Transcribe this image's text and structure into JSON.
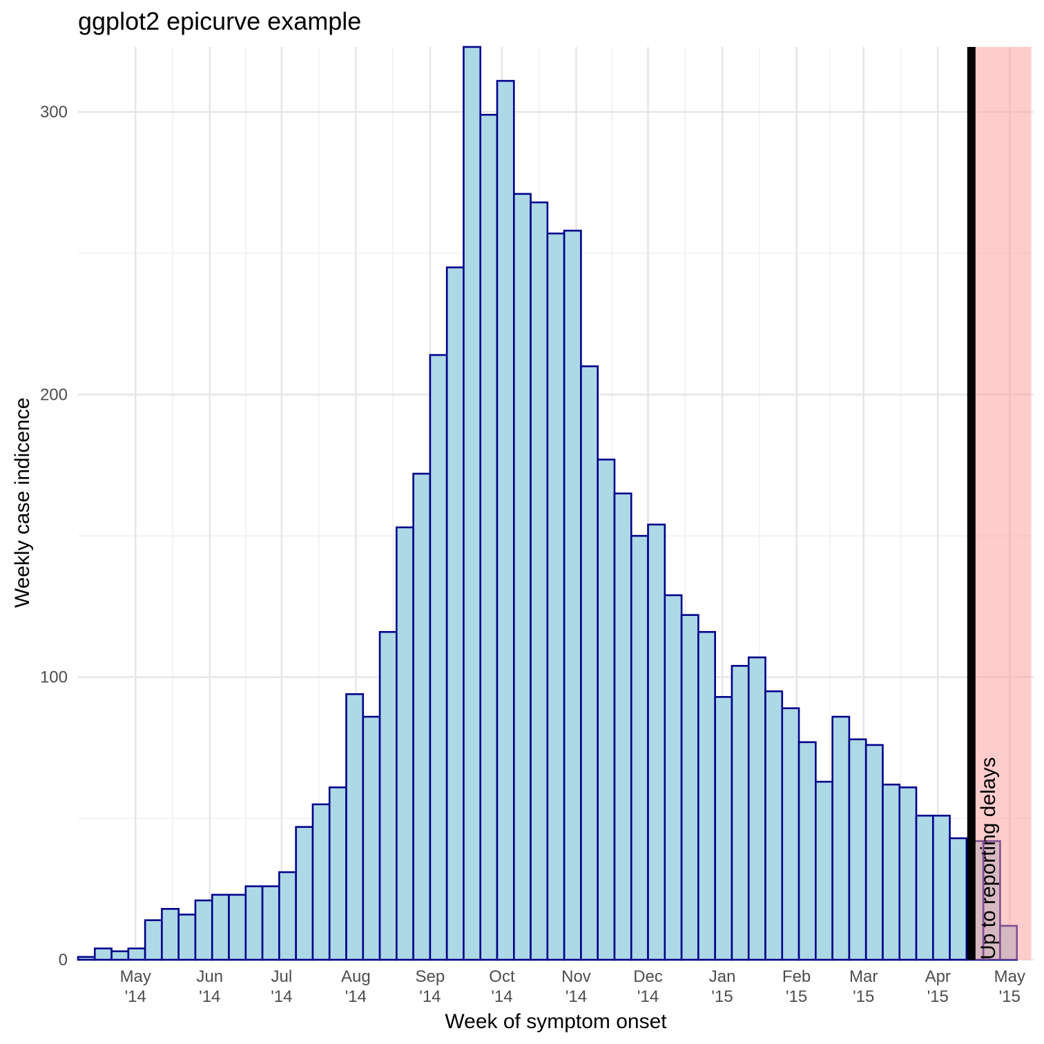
{
  "chart_data": {
    "type": "bar",
    "title": "ggplot2 epicurve example",
    "xlabel": "Week of symptom onset",
    "ylabel": "Weekly case indicence",
    "ylim": [
      0,
      323
    ],
    "y_ticks": [
      0,
      100,
      200,
      300
    ],
    "y_minor_ticks": [
      50,
      150,
      250
    ],
    "x_range": [
      "2014-04-07",
      "2015-05-11"
    ],
    "x_ticks": [
      {
        "date": "2014-05-01",
        "label_month": "May",
        "label_year": "'14"
      },
      {
        "date": "2014-06-01",
        "label_month": "Jun",
        "label_year": "'14"
      },
      {
        "date": "2014-07-01",
        "label_month": "Jul",
        "label_year": "'14"
      },
      {
        "date": "2014-08-01",
        "label_month": "Aug",
        "label_year": "'14"
      },
      {
        "date": "2014-09-01",
        "label_month": "Sep",
        "label_year": "'14"
      },
      {
        "date": "2014-10-01",
        "label_month": "Oct",
        "label_year": "'14"
      },
      {
        "date": "2014-11-01",
        "label_month": "Nov",
        "label_year": "'14"
      },
      {
        "date": "2014-12-01",
        "label_month": "Dec",
        "label_year": "'14"
      },
      {
        "date": "2015-01-01",
        "label_month": "Jan",
        "label_year": "'15"
      },
      {
        "date": "2015-02-01",
        "label_month": "Feb",
        "label_year": "'15"
      },
      {
        "date": "2015-03-01",
        "label_month": "Mar",
        "label_year": "'15"
      },
      {
        "date": "2015-04-01",
        "label_month": "Apr",
        "label_year": "'15"
      },
      {
        "date": "2015-05-01",
        "label_month": "May",
        "label_year": "'15"
      }
    ],
    "grid": true,
    "bar_fill": "#add8e6",
    "bar_outline": "#00008b",
    "weeks": [
      "2014-04-07",
      "2014-04-14",
      "2014-04-21",
      "2014-04-28",
      "2014-05-05",
      "2014-05-12",
      "2014-05-19",
      "2014-05-26",
      "2014-06-02",
      "2014-06-09",
      "2014-06-16",
      "2014-06-23",
      "2014-06-30",
      "2014-07-07",
      "2014-07-14",
      "2014-07-21",
      "2014-07-28",
      "2014-08-04",
      "2014-08-11",
      "2014-08-18",
      "2014-08-25",
      "2014-09-01",
      "2014-09-08",
      "2014-09-15",
      "2014-09-22",
      "2014-09-29",
      "2014-10-06",
      "2014-10-13",
      "2014-10-20",
      "2014-10-27",
      "2014-11-03",
      "2014-11-10",
      "2014-11-17",
      "2014-11-24",
      "2014-12-01",
      "2014-12-08",
      "2014-12-15",
      "2014-12-22",
      "2014-12-29",
      "2015-01-05",
      "2015-01-12",
      "2015-01-19",
      "2015-01-26",
      "2015-02-02",
      "2015-02-09",
      "2015-02-16",
      "2015-02-23",
      "2015-03-02",
      "2015-03-09",
      "2015-03-16",
      "2015-03-23",
      "2015-03-30",
      "2015-04-06",
      "2015-04-13",
      "2015-04-20",
      "2015-04-27"
    ],
    "values": [
      1,
      4,
      3,
      4,
      14,
      18,
      16,
      21,
      23,
      23,
      26,
      26,
      31,
      47,
      55,
      61,
      94,
      86,
      116,
      153,
      172,
      214,
      245,
      323,
      299,
      311,
      271,
      268,
      257,
      258,
      210,
      177,
      165,
      150,
      154,
      129,
      122,
      116,
      93,
      104,
      107,
      95,
      89,
      77,
      63,
      86,
      78,
      76,
      62,
      61,
      51,
      51,
      43,
      42,
      42,
      12
    ],
    "shaded_region": {
      "start": "2015-04-15",
      "end": "2015-05-10",
      "color": "#ff9999",
      "opacity": 0.5
    },
    "vline": {
      "date": "2015-04-15",
      "color": "#000000"
    },
    "annotation": {
      "text": "Up to reporting delays",
      "date": "2015-04-15",
      "y": 0
    }
  }
}
